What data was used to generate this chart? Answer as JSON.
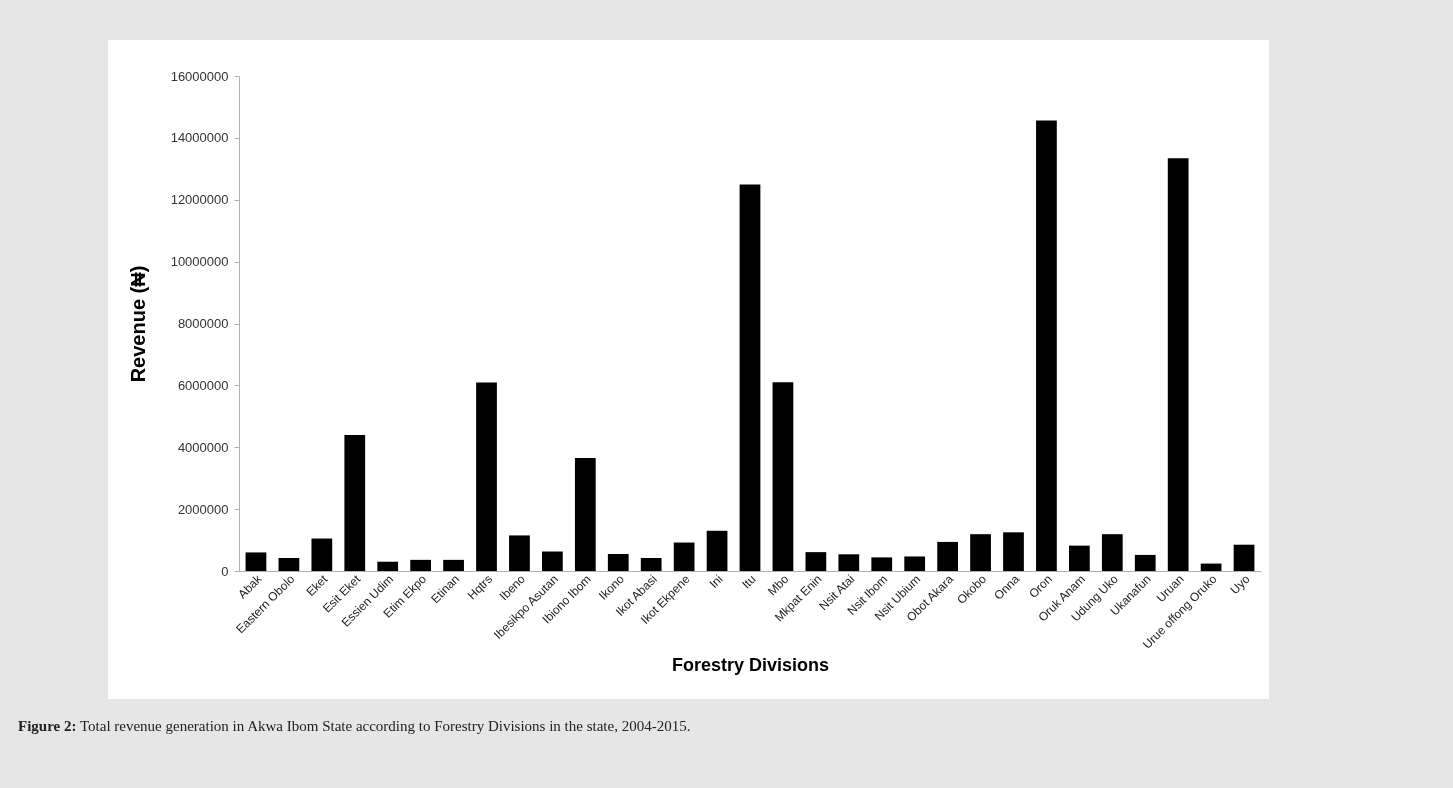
{
  "chart_data": {
    "type": "bar",
    "title": "Figure 2: Total revenue generation in Akwa Ibom State according to Forestry Divisions in the state, 2004-2015.",
    "xlabel": "Forestry Divisions",
    "ylabel": "Revenue (₦)",
    "categories": [
      "Abak",
      "Eastern Obolo",
      "Eket",
      "Esit Eket",
      "Essien Udim",
      "Etim Ekpo",
      "Etinan",
      "Hqtrs",
      "Ibeno",
      "Ibesikpo Asutan",
      "Ibiono Ibom",
      "Ikono",
      "Ikot Abasi",
      "Ikot Ekpene",
      "Ini",
      "Itu",
      "Mbo",
      "Mkpat Enin",
      "Nsit Atai",
      "Nsit Ibom",
      "Nsit Ubium",
      "Obot Akara",
      "Okobo",
      "Onna",
      "Oron",
      "Oruk Anam",
      "Udung Uko",
      "Ukanafun",
      "Uruan",
      "Urue offong Oruko",
      "Uyo"
    ],
    "values": [
      600000,
      420000,
      1050000,
      4400000,
      300000,
      360000,
      360000,
      6090000,
      1150000,
      630000,
      3650000,
      550000,
      420000,
      920000,
      1300000,
      12490000,
      6100000,
      610000,
      540000,
      440000,
      470000,
      940000,
      1190000,
      1250000,
      14560000,
      820000,
      1190000,
      520000,
      13340000,
      240000,
      850000
    ],
    "color": "#000000",
    "ylim": [
      0,
      16000000
    ],
    "yticks": [
      0,
      2000000,
      4000000,
      6000000,
      8000000,
      10000000,
      12000000,
      14000000,
      16000000
    ],
    "grid": false
  }
}
